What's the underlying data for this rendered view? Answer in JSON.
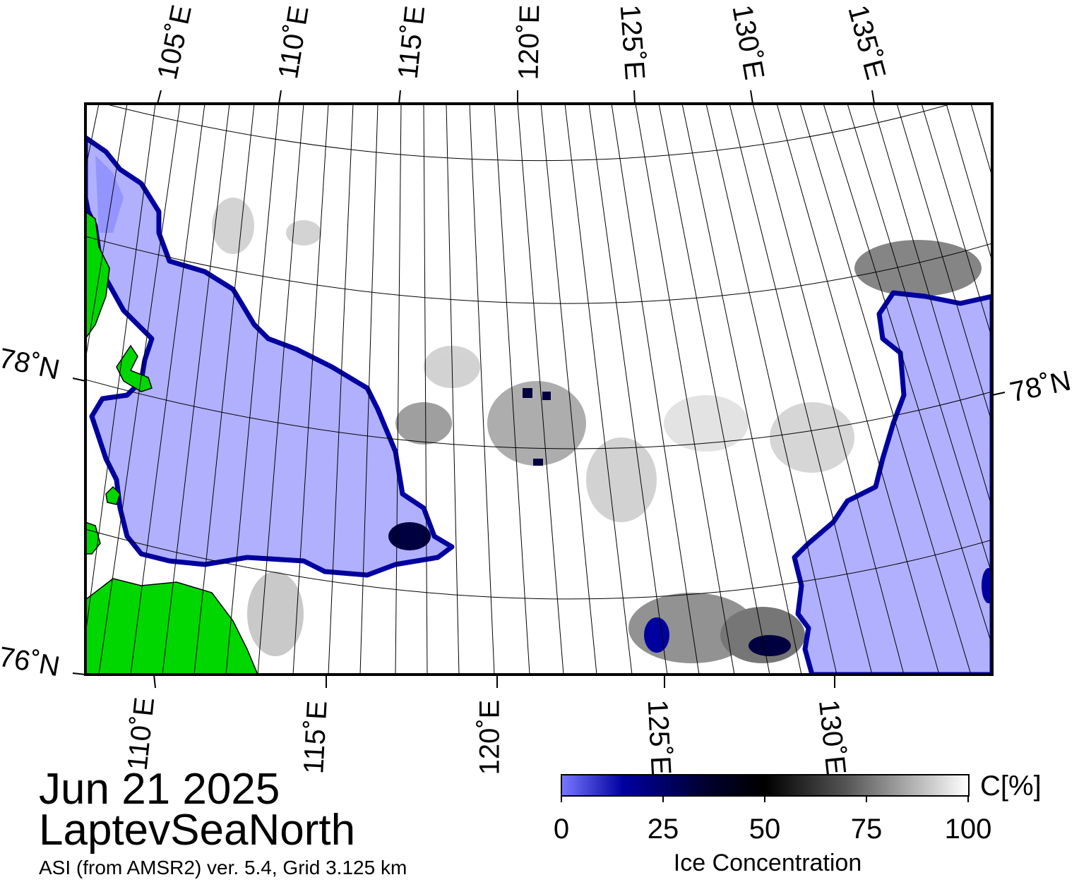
{
  "map": {
    "top_lon_labels": [
      "105˚E",
      "110˚E",
      "115˚E",
      "120˚E",
      "125˚E",
      "130˚E",
      "135˚E"
    ],
    "bottom_lon_labels": [
      "110˚E",
      "115˚E",
      "120˚E",
      "125˚E",
      "130˚E"
    ],
    "lat_labels_left": [
      "78˚N",
      "76˚N"
    ],
    "lat_labels_right": [
      "78˚N"
    ],
    "colors": {
      "water": "#b0b0ff",
      "ice": "#ffffff",
      "land": "#00d700",
      "coast_gray": "#808080",
      "ice_edge": "#0000a0"
    }
  },
  "caption": {
    "date": "Jun 21 2025",
    "region": "LaptevSeaNorth",
    "source": "ASI (from AMSR2) ver. 5.4,  Grid 3.125 km"
  },
  "colorbar": {
    "ticks": [
      "0",
      "25",
      "50",
      "75",
      "100"
    ],
    "unit": "C[%]",
    "title": "Ice Concentration"
  }
}
